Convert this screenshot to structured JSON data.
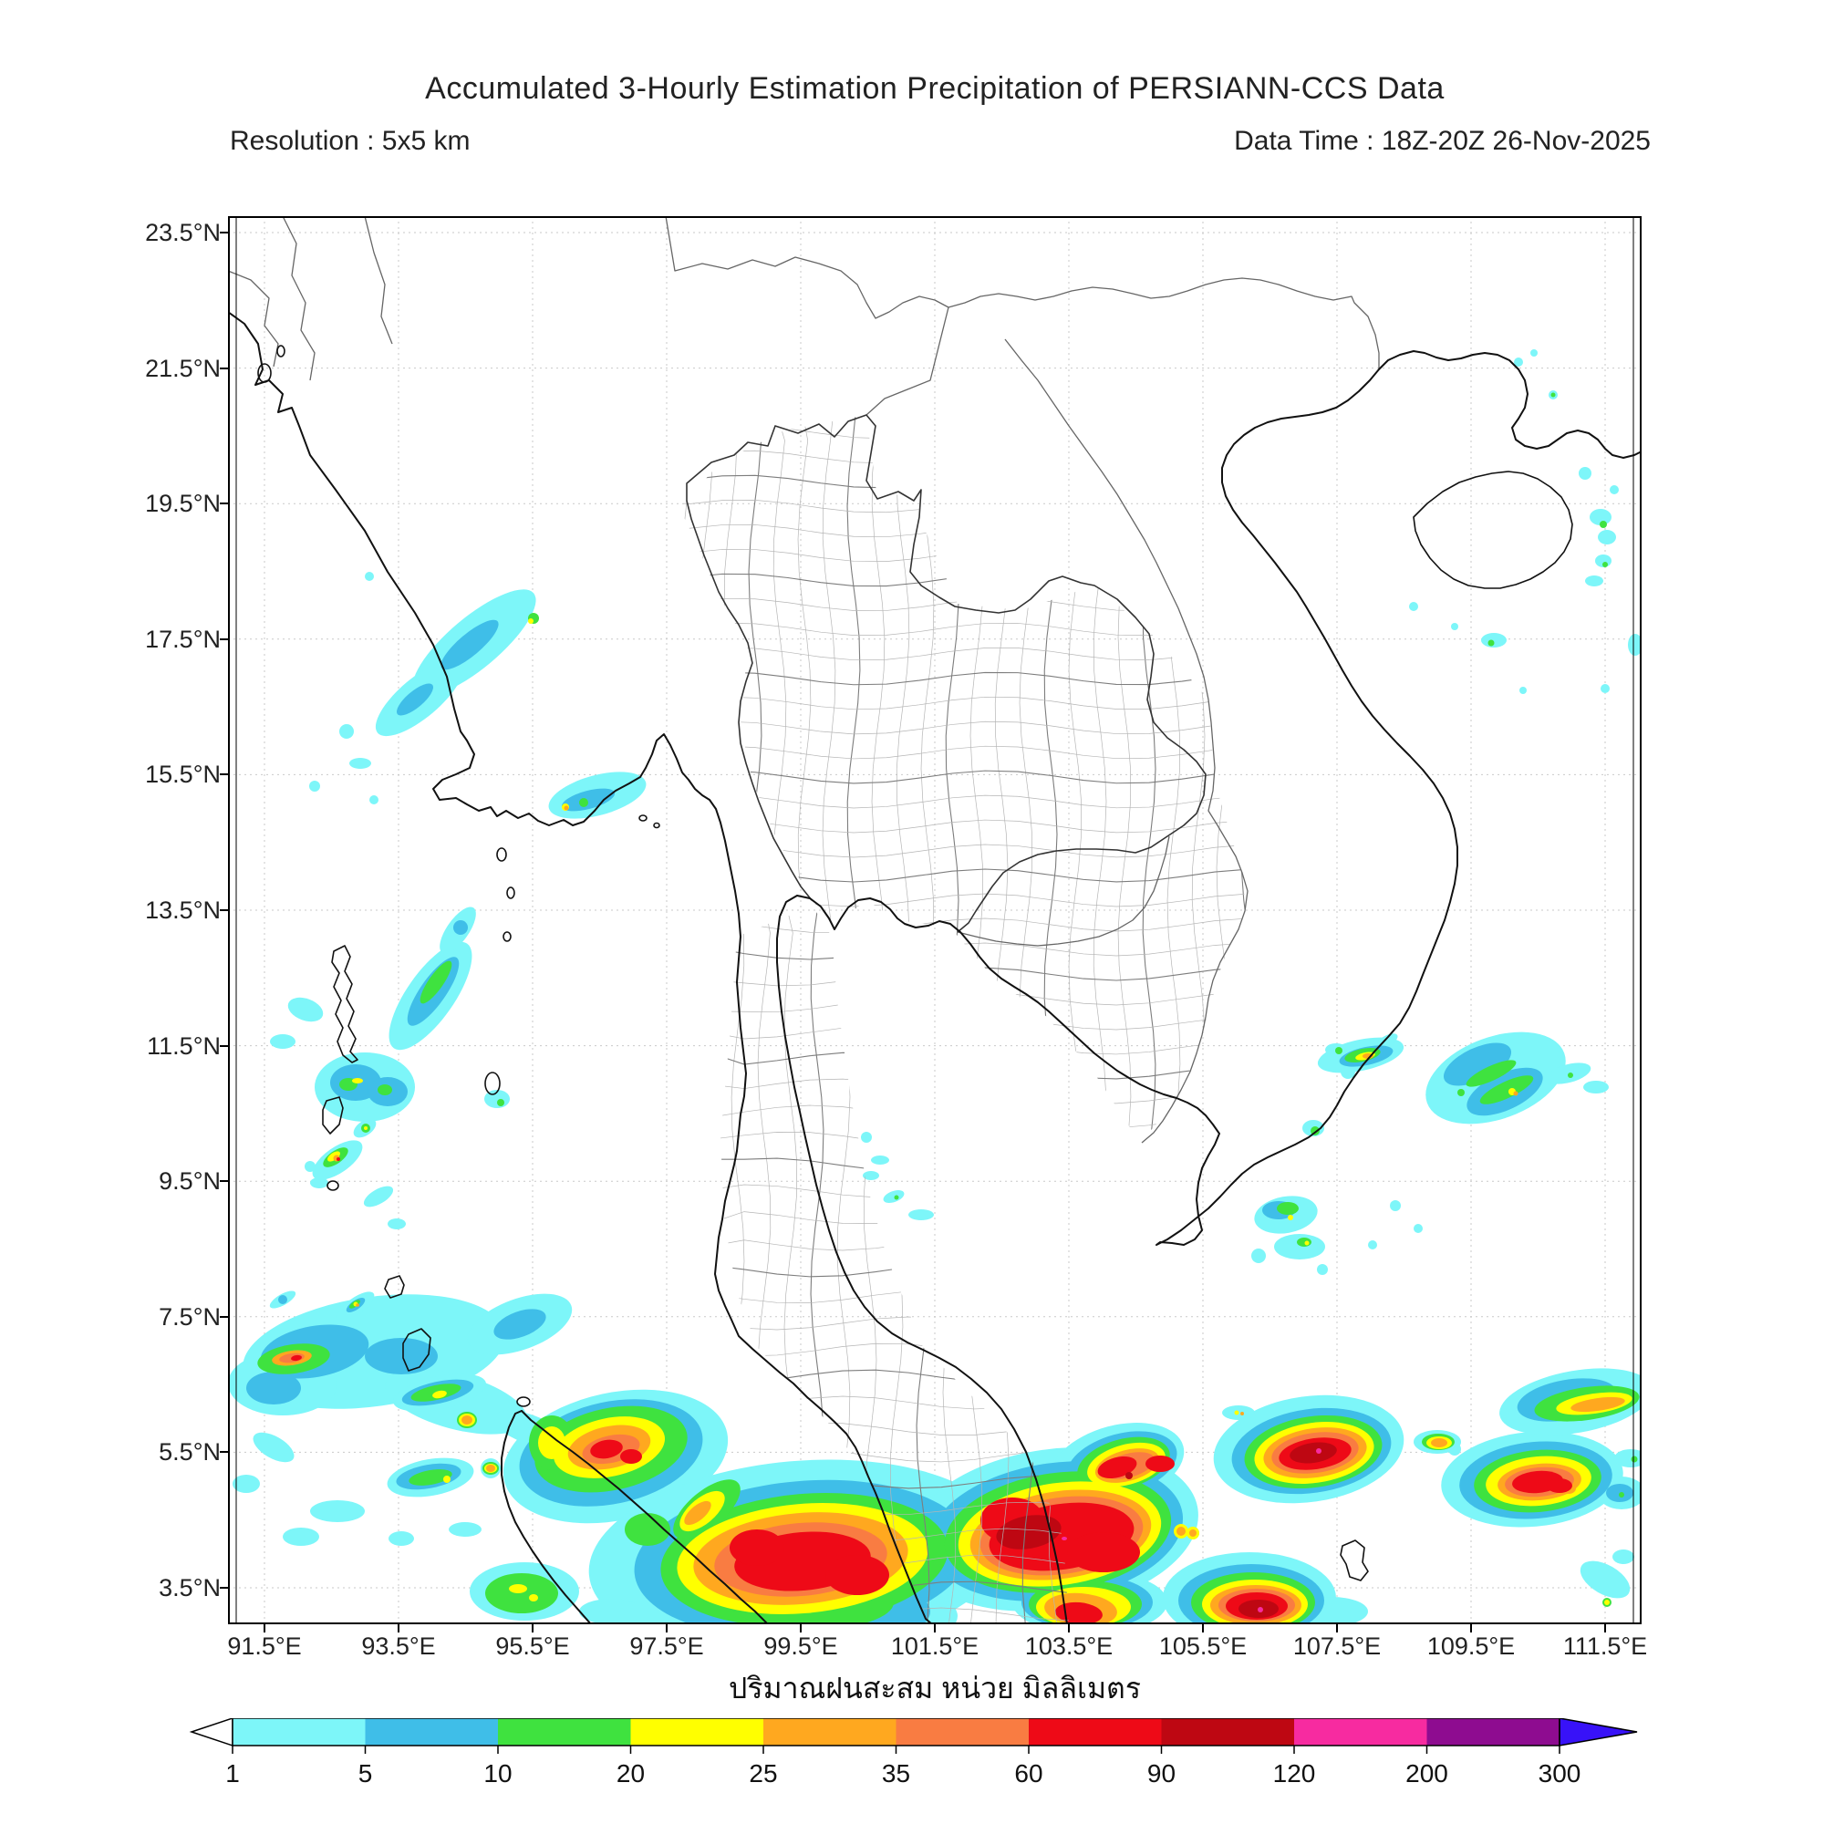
{
  "header": {
    "title": "Accumulated 3-Hourly Estimation Precipitation of PERSIANN-CCS Data",
    "resolution_label": "Resolution : 5x5 km",
    "datatime_label": "Data Time : 18Z-20Z 26-Nov-2025"
  },
  "map": {
    "lat_labels": [
      "23.5°N",
      "21.5°N",
      "19.5°N",
      "17.5°N",
      "15.5°N",
      "13.5°N",
      "11.5°N",
      "9.5°N",
      "7.5°N",
      "5.5°N",
      "3.5°N"
    ],
    "lon_labels": [
      "91.5°E",
      "93.5°E",
      "95.5°E",
      "97.5°E",
      "99.5°E",
      "101.5°E",
      "103.5°E",
      "105.5°E",
      "107.5°E",
      "109.5°E",
      "111.5°E"
    ]
  },
  "footer": {
    "caption_thai": "ปริมาณฝนสะสม หน่วย มิลลิเมตร"
  },
  "colorbar": {
    "unit": "mm",
    "values": [
      "1",
      "5",
      "10",
      "20",
      "25",
      "35",
      "60",
      "90",
      "120",
      "200",
      "300"
    ],
    "segment_colors": [
      "#7DF6F9",
      "#3FBEE8",
      "#3FE23F",
      "#FFFF00",
      "#FFA81F",
      "#F97C42",
      "#EE0A17",
      "#BE0712",
      "#F72BA0",
      "#8E0C90"
    ],
    "under_arrow_color": "#FFFFFF",
    "over_arrow_color": "#3812F8",
    "outline_color": "#000000"
  }
}
